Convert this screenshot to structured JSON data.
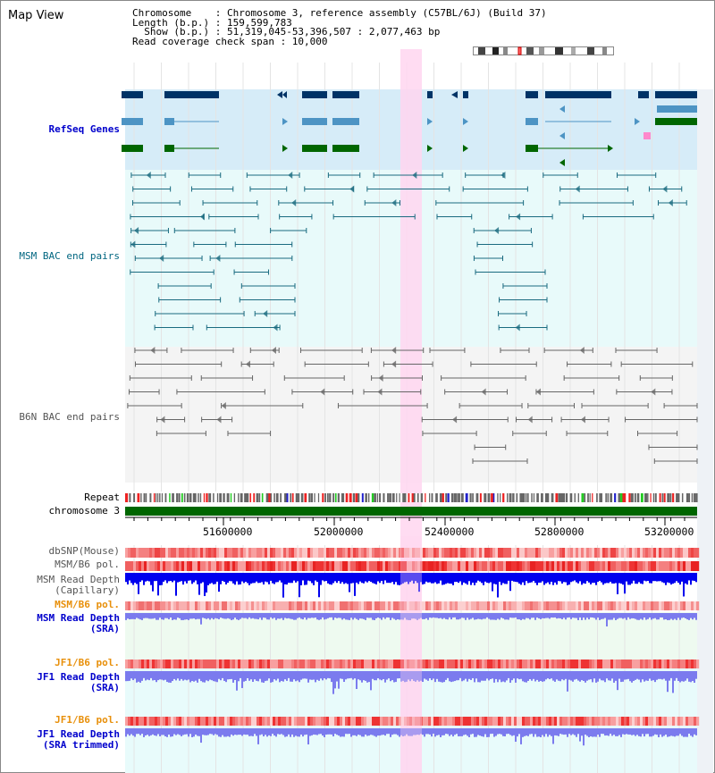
{
  "window": {
    "title": "Map View"
  },
  "info": {
    "chromosome_line": "Chromosome    : Chromosome 3, reference assembly (C57BL/6J) (Build 37)",
    "length_line": "Length (b.p.) : 159,599,783",
    "show_line": "Show (b.p.) : 51,319,045-53,396,507 : 2,077,463 bp",
    "coverage_line": "Read coverage check span : 10,000"
  },
  "tracks": {
    "refseq": "RefSeq Genes",
    "msm_bac": "MSM BAC end pairs",
    "b6n_bac": "B6N BAC end pairs",
    "repeat": "Repeat",
    "chromosome": "chromosome 3",
    "dbsnp": "dbSNP(Mouse)",
    "msm_b6_pol": "MSM/B6 pol.",
    "msm_depth_cap": "MSM Read Depth\n(Capillary)",
    "msm_b6_pol2": "MSM/B6 pol.",
    "msm_depth_sra": "MSM Read Depth\n(SRA)",
    "jf1_b6_pol": "JF1/B6 pol.",
    "jf1_depth_sra": "JF1 Read Depth\n(SRA)",
    "jf1_b6_pol2": "JF1/B6 pol.",
    "jf1_depth_trim": "JF1 Read Depth\n(SRA trimmed)"
  },
  "ruler": {
    "ticks": [
      "51600000",
      "52000000",
      "52400000",
      "52800000",
      "53200000"
    ]
  },
  "colors": {
    "refseq_bg": "#d6ecf8",
    "msm_bg": "#e8fafa",
    "b6n_bg": "#f4f4f4",
    "highlight": "#ffd6f0",
    "gene_dark": "#003366",
    "gene_mid": "#4d94c4",
    "gene_green": "#006600",
    "chrom_bar": "#006600",
    "depth_dark": "#0000ee",
    "depth_light": "#7b7bee"
  }
}
